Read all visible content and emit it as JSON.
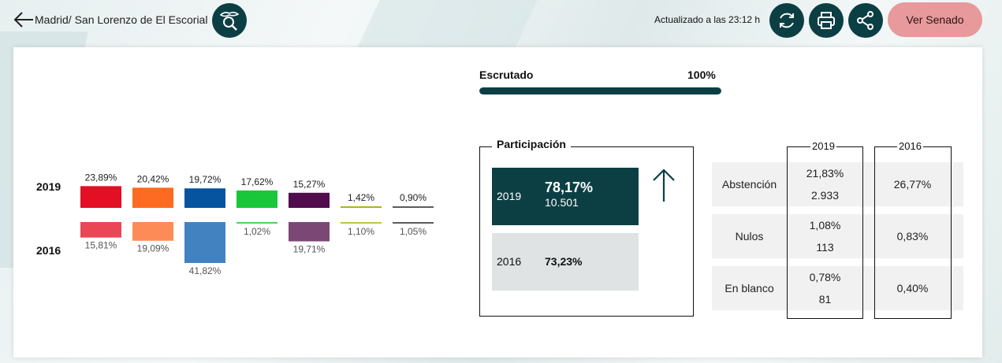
{
  "header": {
    "breadcrumb": "Madrid/ San Lorenzo de El Escorial",
    "updated": "Actualizado a las 23:12 h",
    "senado_label": "Ver Senado"
  },
  "icons": [
    "arrow-left-icon",
    "search-map-icon",
    "refresh-icon",
    "print-icon",
    "share-icon",
    "arrow-up-icon"
  ],
  "colors": {
    "accent": "#0c3f44",
    "senado": "#e7999b"
  },
  "escrutado": {
    "label": "Escrutado",
    "value": "100%",
    "fraction": 1.0
  },
  "chart_data": {
    "type": "bar",
    "series": [
      {
        "name": "2019",
        "labels": [
          "23,89%",
          "20,42%",
          "19,72%",
          "17,62%",
          "15,27%",
          "1,42%",
          "0,90%"
        ],
        "values": [
          23.89,
          20.42,
          19.72,
          17.62,
          15.27,
          1.42,
          0.9
        ],
        "colors": [
          "#e30f24",
          "#fd6a21",
          "#0654a0",
          "#1ac73a",
          "#510d4c",
          "#aab51e",
          "#5b5b5b"
        ]
      },
      {
        "name": "2016",
        "labels": [
          "15,81%",
          "19,09%",
          "41,82%",
          "1,02%",
          "19,71%",
          "1,10%",
          "1,05%"
        ],
        "values": [
          15.81,
          19.09,
          41.82,
          1.02,
          19.71,
          1.1,
          1.05
        ],
        "colors": [
          "#ea4655",
          "#fd8b57",
          "#4382c0",
          "#49d662",
          "#7b4876",
          "#bcc53f",
          "#5b5b5b"
        ]
      }
    ]
  },
  "participacion": {
    "title": "Participación",
    "y2019": {
      "year": "2019",
      "pct": "78,17%",
      "count": "10.501"
    },
    "y2016": {
      "year": "2016",
      "pct": "73,23%"
    }
  },
  "table": {
    "col2019": "2019",
    "col2016": "2016",
    "rows": [
      {
        "label": "Abstención",
        "pct2019": "21,83%",
        "count2019": "2.933",
        "pct2016": "26,77%"
      },
      {
        "label": "Nulos",
        "pct2019": "1,08%",
        "count2019": "113",
        "pct2016": "0,83%"
      },
      {
        "label": "En blanco",
        "pct2019": "0,78%",
        "count2019": "81",
        "pct2016": "0,40%"
      }
    ]
  }
}
